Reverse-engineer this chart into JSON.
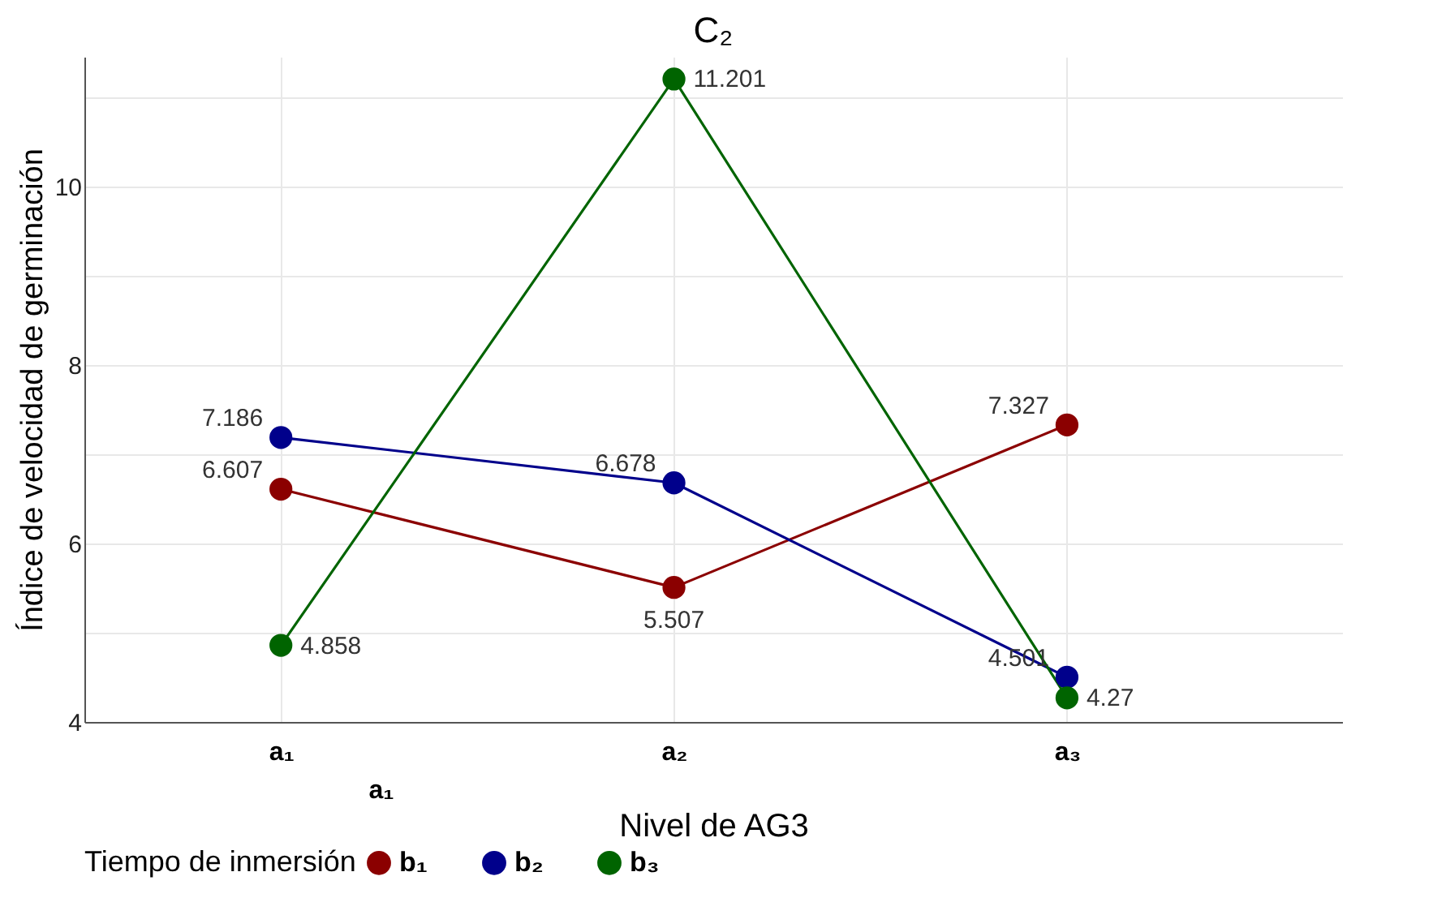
{
  "chart_data": {
    "type": "line",
    "title": "C₂",
    "xlabel": "Nivel de AG3",
    "ylabel": "Índice de velocidad de germinación",
    "legend_title": "Tiempo de inmersión",
    "categories": [
      "a₁",
      "a₂",
      "a₃"
    ],
    "series": [
      {
        "name": "b₁",
        "color": "#8b0000",
        "values": [
          6.607,
          5.507,
          7.327
        ]
      },
      {
        "name": "b₂",
        "color": "#00008b",
        "values": [
          7.186,
          6.678,
          4.501
        ]
      },
      {
        "name": "b₃",
        "color": "#006400",
        "values": [
          4.858,
          11.201,
          4.27
        ]
      }
    ],
    "ylim": [
      4,
      11.45
    ],
    "yticks": [
      4,
      {
        "value": 5,
        "label": null
      },
      6,
      {
        "value": 7,
        "label": null
      },
      8,
      {
        "value": 9,
        "label": null
      },
      10,
      {
        "value": 11,
        "label": null
      }
    ],
    "grid": true,
    "legend": "bottom",
    "marker": "circle",
    "line_style": "solid",
    "data_labels": true,
    "annotations": [
      "a₁"
    ]
  }
}
